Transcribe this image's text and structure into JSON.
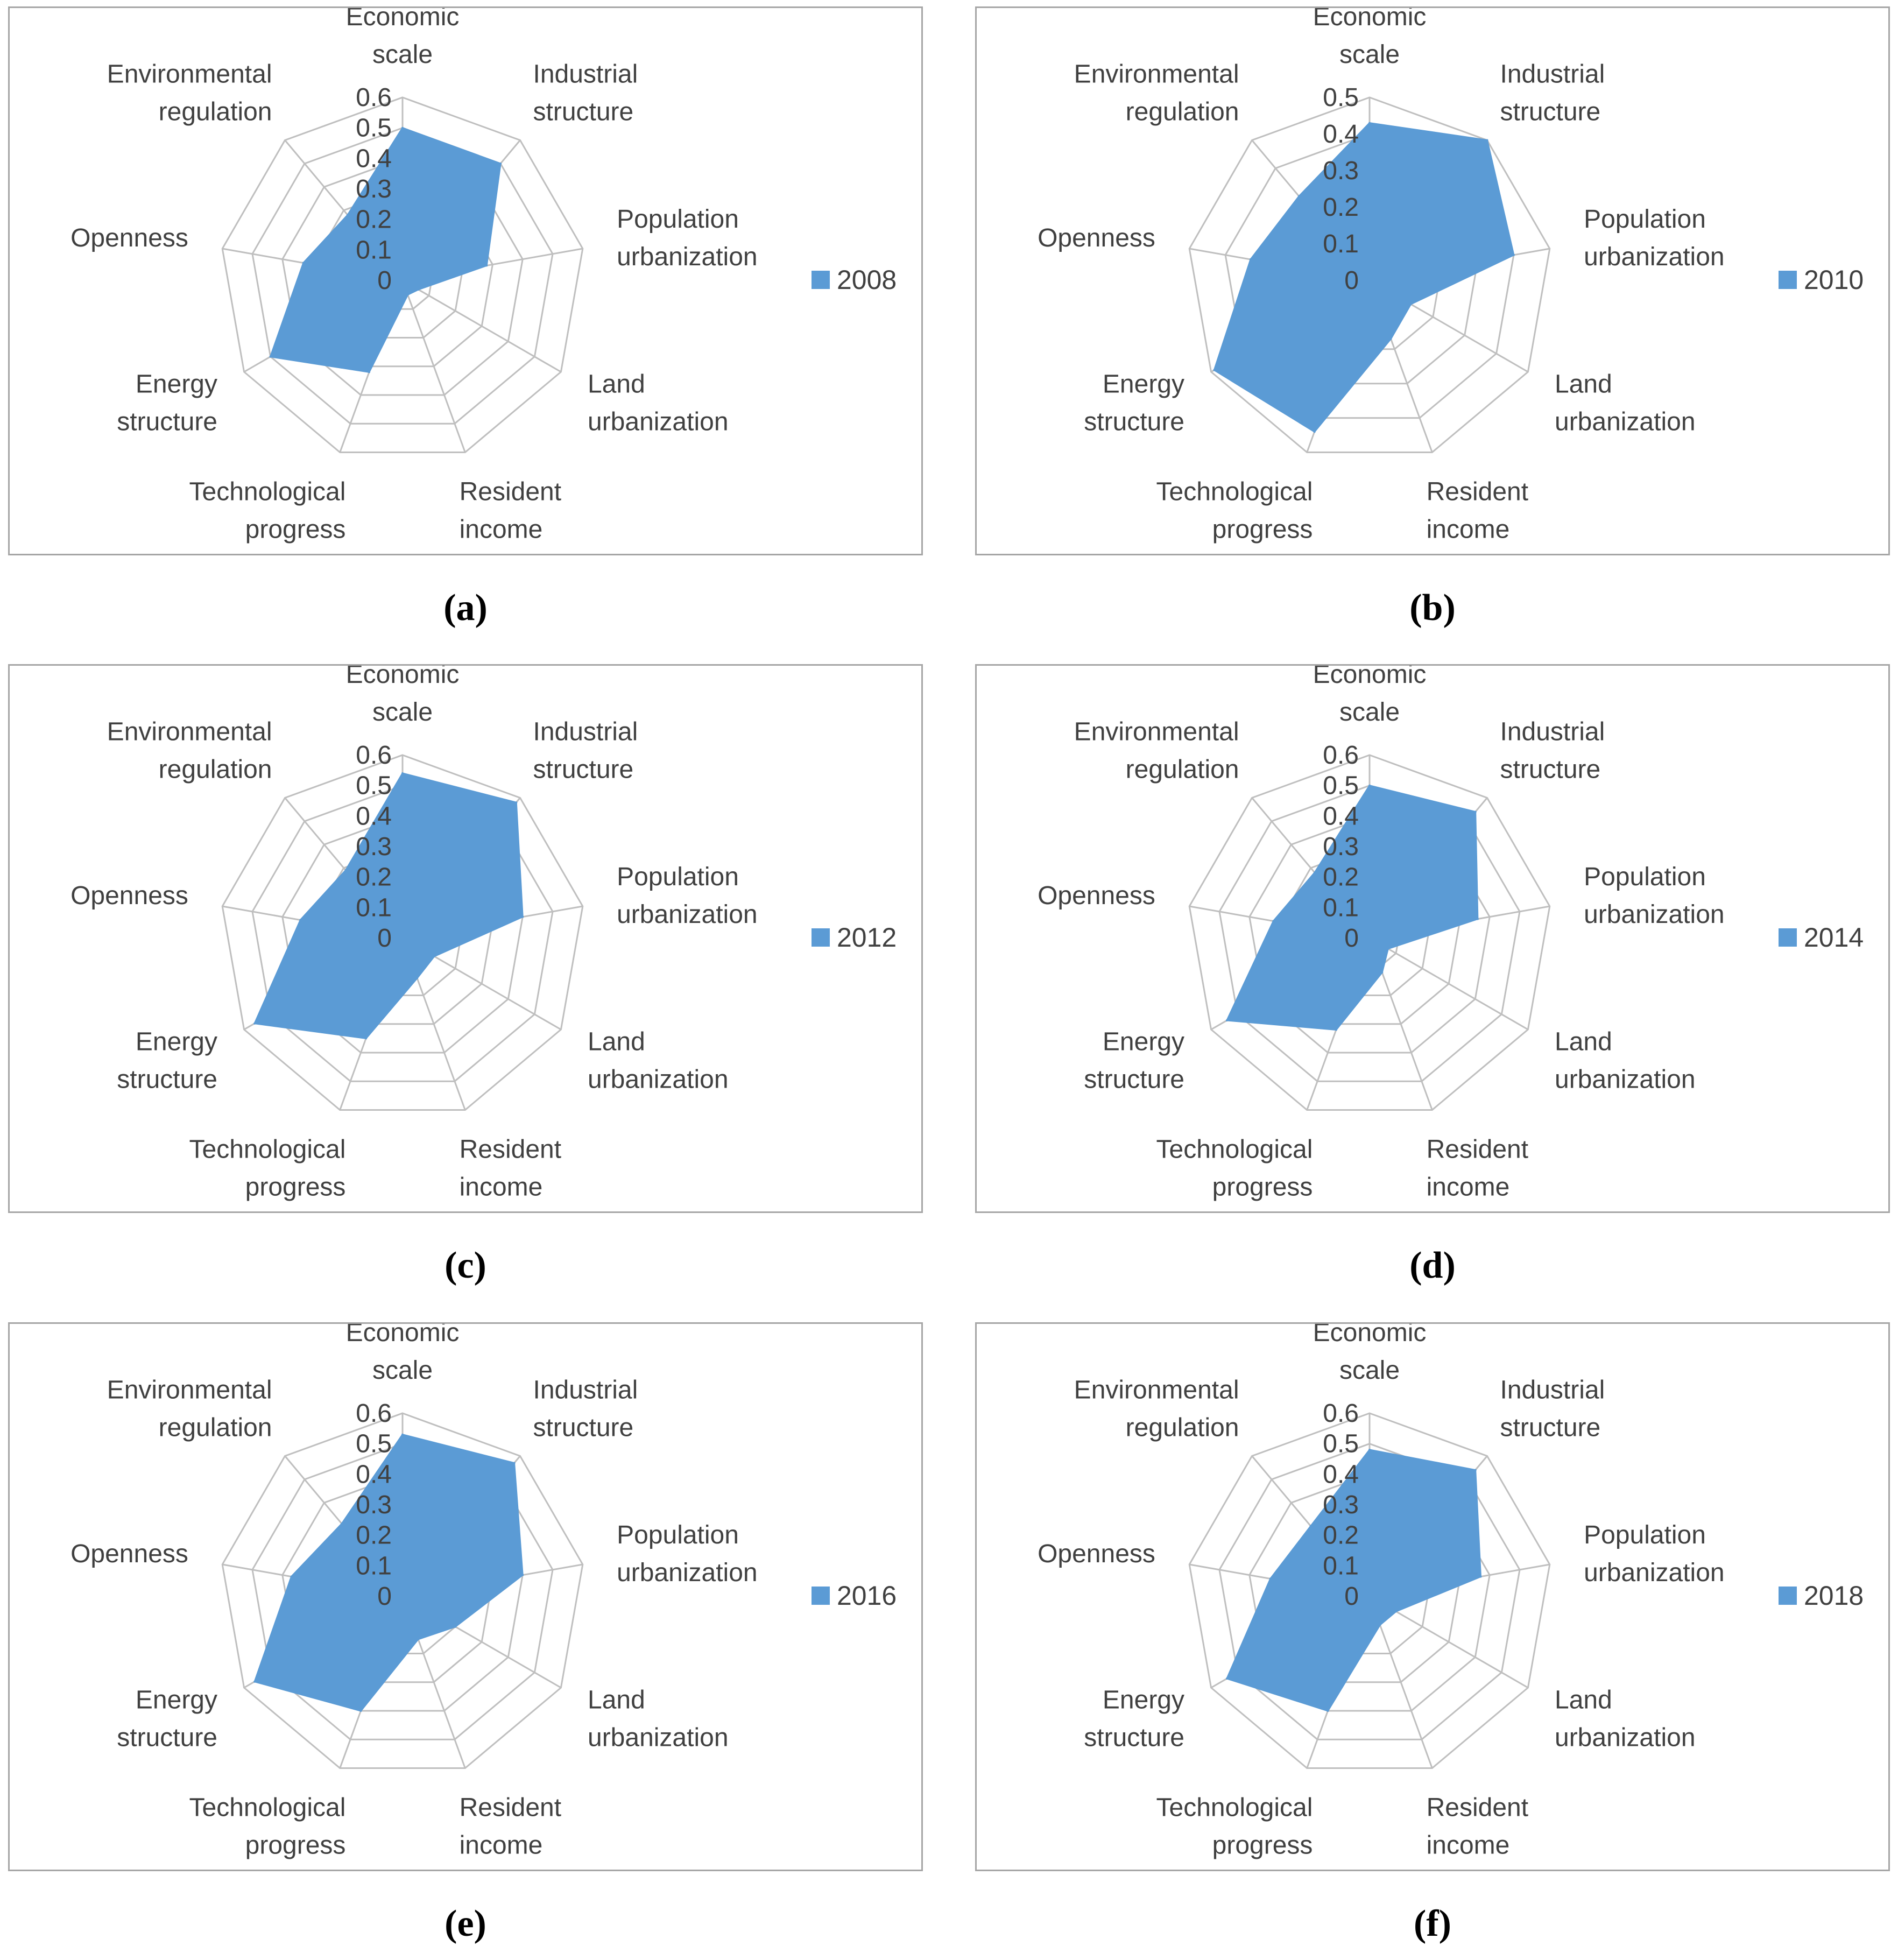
{
  "categories": [
    "Economic scale",
    "Industrial structure",
    "Population urbanization",
    "Land urbanization",
    "Resident income",
    "Technological progress",
    "Energy structure",
    "Openness",
    "Environmental regulation"
  ],
  "category_lines": [
    [
      "Economic",
      "scale"
    ],
    [
      "Industrial",
      "structure"
    ],
    [
      "Population",
      "urbanization"
    ],
    [
      "Land",
      "urbanization"
    ],
    [
      "Resident",
      "income"
    ],
    [
      "Technological",
      "progress"
    ],
    [
      "Energy",
      "structure"
    ],
    [
      "Openness"
    ],
    [
      "Environmental",
      "regulation"
    ]
  ],
  "colors": {
    "series_fill": "#5b9bd5",
    "grid": "#bfbfbf",
    "border": "#a6a6a6",
    "text": "#404040"
  },
  "chart_data": [
    {
      "panel": "a",
      "caption": "(a)",
      "type": "radar",
      "series_name": "2008",
      "categories": [
        "Economic scale",
        "Industrial structure",
        "Population urbanization",
        "Land urbanization",
        "Resident income",
        "Technological progress",
        "Energy structure",
        "Openness",
        "Environmental regulation"
      ],
      "values": [
        0.5,
        0.5,
        0.28,
        0.06,
        0.05,
        0.32,
        0.5,
        0.33,
        0.28
      ],
      "rlim": [
        0,
        0.6
      ],
      "ticks": [
        "0",
        "0.1",
        "0.2",
        "0.3",
        "0.4",
        "0.5",
        "0.6"
      ]
    },
    {
      "panel": "b",
      "caption": "(b)",
      "type": "radar",
      "series_name": "2010",
      "categories": [
        "Economic scale",
        "Industrial structure",
        "Population urbanization",
        "Land urbanization",
        "Resident income",
        "Technological progress",
        "Energy structure",
        "Openness",
        "Environmental regulation"
      ],
      "values": [
        0.43,
        0.5,
        0.4,
        0.13,
        0.17,
        0.44,
        0.49,
        0.33,
        0.3
      ],
      "rlim": [
        0,
        0.5
      ],
      "ticks": [
        "0",
        "0.1",
        "0.2",
        "0.3",
        "0.4",
        "0.5"
      ]
    },
    {
      "panel": "c",
      "caption": "(c)",
      "type": "radar",
      "series_name": "2012",
      "categories": [
        "Economic scale",
        "Industrial structure",
        "Population urbanization",
        "Land urbanization",
        "Resident income",
        "Technological progress",
        "Energy structure",
        "Openness",
        "Environmental regulation"
      ],
      "values": [
        0.54,
        0.58,
        0.4,
        0.12,
        0.14,
        0.35,
        0.56,
        0.34,
        0.29
      ],
      "rlim": [
        0,
        0.6
      ],
      "ticks": [
        "0",
        "0.1",
        "0.2",
        "0.3",
        "0.4",
        "0.5",
        "0.6"
      ]
    },
    {
      "panel": "d",
      "caption": "(d)",
      "type": "radar",
      "series_name": "2014",
      "categories": [
        "Economic scale",
        "Industrial structure",
        "Population urbanization",
        "Land urbanization",
        "Resident income",
        "Technological progress",
        "Energy structure",
        "Openness",
        "Environmental regulation"
      ],
      "values": [
        0.5,
        0.54,
        0.36,
        0.07,
        0.12,
        0.32,
        0.54,
        0.32,
        0.28
      ],
      "rlim": [
        0,
        0.6
      ],
      "ticks": [
        "0",
        "0.1",
        "0.2",
        "0.3",
        "0.4",
        "0.5",
        "0.6"
      ]
    },
    {
      "panel": "e",
      "caption": "(e)",
      "type": "radar",
      "series_name": "2016",
      "categories": [
        "Economic scale",
        "Industrial structure",
        "Population urbanization",
        "Land urbanization",
        "Resident income",
        "Technological progress",
        "Energy structure",
        "Openness",
        "Environmental regulation"
      ],
      "values": [
        0.53,
        0.57,
        0.4,
        0.2,
        0.15,
        0.4,
        0.56,
        0.37,
        0.31
      ],
      "rlim": [
        0,
        0.6
      ],
      "ticks": [
        "0",
        "0.1",
        "0.2",
        "0.3",
        "0.4",
        "0.5",
        "0.6"
      ]
    },
    {
      "panel": "f",
      "caption": "(f)",
      "type": "radar",
      "series_name": "2018",
      "categories": [
        "Economic scale",
        "Industrial structure",
        "Population urbanization",
        "Land urbanization",
        "Resident income",
        "Technological progress",
        "Energy structure",
        "Openness",
        "Environmental regulation"
      ],
      "values": [
        0.48,
        0.54,
        0.37,
        0.1,
        0.1,
        0.4,
        0.54,
        0.33,
        0.3
      ],
      "rlim": [
        0,
        0.6
      ],
      "ticks": [
        "0",
        "0.1",
        "0.2",
        "0.3",
        "0.4",
        "0.5",
        "0.6"
      ]
    }
  ]
}
